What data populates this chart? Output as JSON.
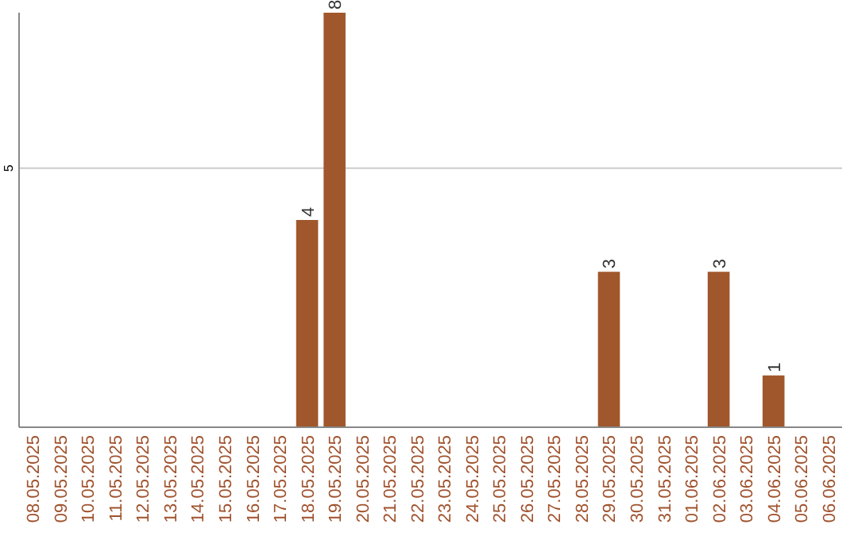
{
  "chart_data": {
    "type": "bar",
    "categories": [
      "08.05.2025",
      "09.05.2025",
      "10.05.2025",
      "11.05.2025",
      "12.05.2025",
      "13.05.2025",
      "14.05.2025",
      "15.05.2025",
      "16.05.2025",
      "17.05.2025",
      "18.05.2025",
      "19.05.2025",
      "20.05.2025",
      "21.05.2025",
      "22.05.2025",
      "23.05.2025",
      "24.05.2025",
      "25.05.2025",
      "26.05.2025",
      "27.05.2025",
      "28.05.2025",
      "29.05.2025",
      "30.05.2025",
      "31.05.2025",
      "01.06.2025",
      "02.06.2025",
      "03.06.2025",
      "04.06.2025",
      "05.06.2025",
      "06.06.2025"
    ],
    "values": [
      0,
      0,
      0,
      0,
      0,
      0,
      0,
      0,
      0,
      0,
      4,
      8,
      0,
      0,
      0,
      0,
      0,
      0,
      0,
      0,
      0,
      3,
      0,
      0,
      0,
      3,
      0,
      1,
      0,
      0
    ],
    "value_labels": [
      null,
      null,
      null,
      null,
      null,
      null,
      null,
      null,
      null,
      null,
      "4",
      "8",
      null,
      null,
      null,
      null,
      null,
      null,
      null,
      null,
      null,
      "3",
      null,
      null,
      null,
      "3",
      null,
      "1",
      null,
      null
    ],
    "color": "#a0572b",
    "ylim": [
      0,
      8
    ],
    "yticks": [
      5
    ],
    "grid": "y"
  }
}
